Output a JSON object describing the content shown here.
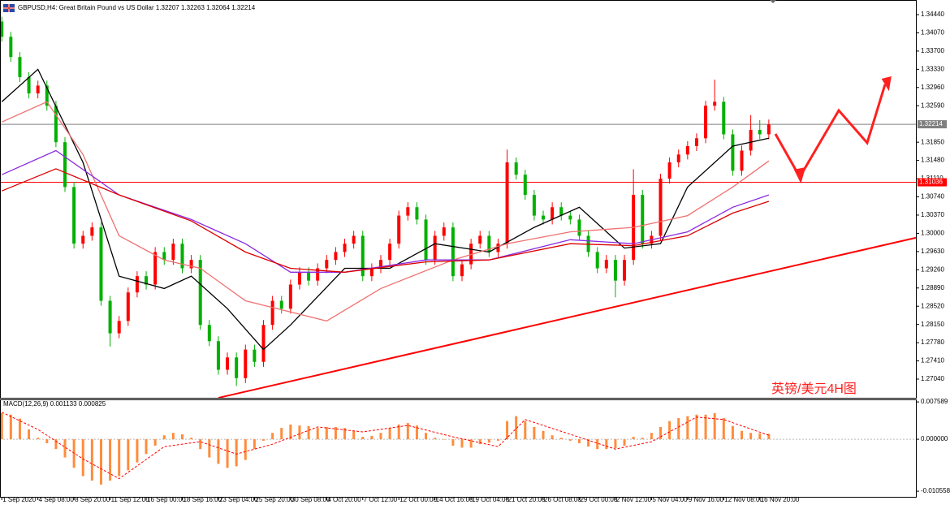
{
  "chart_data": [
    {
      "type": "candlestick",
      "title": "GBPUSD,H4:  Great Britain Pound vs US Dollar  1.32207 1.32263 1.32064 1.32214",
      "annotation": "英镑/美元4H图",
      "categories": [
        "1 Sep 2020",
        null,
        null,
        null,
        "4 Sep 08:00",
        null,
        null,
        null,
        "8 Sep 20:00",
        null,
        null,
        null,
        "11 Sep 12:00",
        null,
        null,
        null,
        "16 Sep 00:00",
        null,
        null,
        null,
        "18 Sep 16:00",
        null,
        null,
        null,
        "23 Sep 04:00",
        null,
        null,
        null,
        "25 Sep 20:00",
        null,
        null,
        null,
        "30 Sep 08:00",
        null,
        null,
        null,
        "4 Oct 20:00",
        null,
        null,
        null,
        "7 Oct 12:00",
        null,
        null,
        null,
        "12 Oct 00:00",
        null,
        null,
        null,
        "14 Oct 16:00",
        null,
        null,
        null,
        "19 Oct 04:00",
        null,
        null,
        null,
        "21 Oct 20:00",
        null,
        null,
        null,
        "26 Oct 08:00",
        null,
        null,
        null,
        "29 Oct 00:00",
        null,
        null,
        null,
        "2 Nov 12:00",
        null,
        null,
        null,
        "5 Nov 04:00",
        null,
        null,
        null,
        "9 Nov 16:00",
        null,
        null,
        null,
        "12 Nov 08:00",
        null,
        null,
        null,
        "16 Nov 20:00",
        null
      ],
      "open": [
        1.343,
        1.3399,
        1.3358,
        1.3317,
        1.3284,
        1.33,
        1.3259,
        1.3185,
        1.3094,
        1.2979,
        1.2995,
        1.3012,
        1.2863,
        1.2797,
        1.2822,
        1.288,
        1.2913,
        1.2896,
        1.2962,
        1.2946,
        1.2979,
        1.2929,
        1.2946,
        1.2814,
        1.2781,
        1.2723,
        1.2748,
        1.2706,
        1.2764,
        1.2739,
        1.2814,
        1.2863,
        1.2847,
        1.2896,
        1.2921,
        1.2904,
        1.2929,
        1.2946,
        1.2962,
        1.2979,
        1.2995,
        1.2913,
        1.2929,
        1.2946,
        1.2979,
        1.3036,
        1.3053,
        1.3028,
        1.2946,
        1.2995,
        1.3012,
        1.2913,
        1.2937,
        1.2979,
        1.2995,
        1.2962,
        1.2979,
        1.3144,
        1.3119,
        1.3078,
        1.3036,
        1.3028,
        1.3053,
        1.3036,
        1.3028,
        1.2995,
        1.2962,
        1.2929,
        1.2946,
        1.2904,
        1.2946,
        1.3078,
        1.2979,
        1.2995,
        1.3111,
        1.3144,
        1.316,
        1.3177,
        1.3193,
        1.3259,
        1.3267,
        1.3201,
        1.3127,
        1.3168,
        1.321,
        1.3201
      ],
      "high": [
        1.344,
        1.3409,
        1.3368,
        1.3327,
        1.331,
        1.331,
        1.3269,
        1.3195,
        1.3104,
        1.3005,
        1.3022,
        1.3022,
        1.2873,
        1.2832,
        1.289,
        1.2923,
        1.2923,
        1.2972,
        1.2972,
        1.2989,
        1.2989,
        1.2956,
        1.2956,
        1.2824,
        1.2791,
        1.2758,
        1.2758,
        1.2774,
        1.2774,
        1.2824,
        1.2873,
        1.2873,
        1.2906,
        1.2931,
        1.2931,
        1.2939,
        1.2956,
        1.2972,
        1.2989,
        1.3005,
        1.3005,
        1.2939,
        1.2956,
        1.2989,
        1.3046,
        1.3063,
        1.3063,
        1.3038,
        1.3005,
        1.3022,
        1.3022,
        1.2947,
        1.2989,
        1.3005,
        1.3005,
        1.2989,
        1.317,
        1.3154,
        1.3129,
        1.3088,
        1.3046,
        1.3063,
        1.3063,
        1.3046,
        1.3038,
        1.3005,
        1.2972,
        1.2956,
        1.2956,
        1.2956,
        1.313,
        1.3088,
        1.3005,
        1.3121,
        1.3154,
        1.317,
        1.3187,
        1.3203,
        1.3269,
        1.3312,
        1.3277,
        1.3211,
        1.3178,
        1.324,
        1.323,
        1.3231
      ],
      "low": [
        1.3389,
        1.3348,
        1.3307,
        1.3274,
        1.3274,
        1.3249,
        1.3175,
        1.3084,
        1.2969,
        1.2969,
        1.2985,
        1.2853,
        1.277,
        1.2787,
        1.2812,
        1.287,
        1.2886,
        1.2886,
        1.2936,
        1.2936,
        1.2919,
        1.2919,
        1.2804,
        1.2771,
        1.2713,
        1.2713,
        1.269,
        1.2696,
        1.2729,
        1.2729,
        1.2804,
        1.2837,
        1.2837,
        1.2886,
        1.2894,
        1.2894,
        1.2919,
        1.2936,
        1.2952,
        1.2969,
        1.2903,
        1.2903,
        1.2919,
        1.2936,
        1.2969,
        1.3026,
        1.3018,
        1.2936,
        1.2936,
        1.2985,
        1.2903,
        1.2903,
        1.2927,
        1.2969,
        1.2952,
        1.2952,
        1.2969,
        1.3109,
        1.3068,
        1.3026,
        1.3018,
        1.3018,
        1.3026,
        1.3018,
        1.2985,
        1.2952,
        1.2919,
        1.2919,
        1.287,
        1.2894,
        1.2936,
        1.2969,
        1.2969,
        1.2985,
        1.3101,
        1.3134,
        1.315,
        1.3167,
        1.3183,
        1.3249,
        1.3191,
        1.3117,
        1.3117,
        1.3158,
        1.3191,
        1.3191
      ],
      "close": [
        1.3399,
        1.3358,
        1.3317,
        1.3284,
        1.33,
        1.3259,
        1.3185,
        1.3094,
        1.2979,
        1.2995,
        1.3012,
        1.2863,
        1.2797,
        1.2822,
        1.288,
        1.2913,
        1.2896,
        1.2962,
        1.2946,
        1.2979,
        1.2929,
        1.2946,
        1.2814,
        1.2781,
        1.2723,
        1.2748,
        1.2706,
        1.2764,
        1.2739,
        1.2814,
        1.2863,
        1.2847,
        1.2896,
        1.2921,
        1.2904,
        1.2929,
        1.2946,
        1.2962,
        1.2979,
        1.2995,
        1.2913,
        1.2929,
        1.2946,
        1.2979,
        1.3036,
        1.3053,
        1.3028,
        1.2946,
        1.2995,
        1.3012,
        1.2913,
        1.2937,
        1.2979,
        1.2995,
        1.2962,
        1.2979,
        1.3144,
        1.3119,
        1.3078,
        1.3036,
        1.3028,
        1.3053,
        1.3036,
        1.3028,
        1.2995,
        1.2962,
        1.2929,
        1.2946,
        1.2904,
        1.2946,
        1.3078,
        1.2979,
        1.2995,
        1.3111,
        1.3144,
        1.316,
        1.3177,
        1.3193,
        1.3259,
        1.3267,
        1.3201,
        1.3127,
        1.3168,
        1.321,
        1.3201,
        1.3221
      ],
      "up_color": "#ff0000",
      "down_color": "#00b000",
      "xlim": [
        -0.2,
        101.3
      ],
      "ylim": [
        1.26661,
        1.34737
      ],
      "yticks": [
        {
          "value": 1.3444,
          "label": "1.34440"
        },
        {
          "value": 1.3407,
          "label": "1.34070"
        },
        {
          "value": 1.337,
          "label": "1.33700"
        },
        {
          "value": 1.3333,
          "label": "1.33330"
        },
        {
          "value": 1.3296,
          "label": "1.32960"
        },
        {
          "value": 1.3259,
          "label": "1.32590"
        },
        {
          "value": 1.3185,
          "label": "1.31850"
        },
        {
          "value": 1.3148,
          "label": "1.31480"
        },
        {
          "value": 1.3111,
          "label": "1.31110"
        },
        {
          "value": 1.3074,
          "label": "1.30740"
        },
        {
          "value": 1.3037,
          "label": "1.30370"
        },
        {
          "value": 1.3,
          "label": "1.30000"
        },
        {
          "value": 1.2963,
          "label": "1.29630"
        },
        {
          "value": 1.2926,
          "label": "1.29260"
        },
        {
          "value": 1.2889,
          "label": "1.28890"
        },
        {
          "value": 1.2852,
          "label": "1.28520"
        },
        {
          "value": 1.2815,
          "label": "1.28150"
        },
        {
          "value": 1.2778,
          "label": "1.27780"
        },
        {
          "value": 1.2741,
          "label": "1.27410"
        },
        {
          "value": 1.2704,
          "label": "1.27040"
        }
      ],
      "lines": [
        {
          "color": "#000000",
          "x": [
            0,
            4,
            9,
            13,
            18,
            21,
            25,
            29,
            32,
            38,
            43,
            48,
            54,
            59,
            64,
            69,
            73,
            76,
            81,
            85
          ],
          "values": [
            1.3267,
            1.3333,
            1.3144,
            1.2913,
            1.2888,
            1.2913,
            1.2847,
            1.2764,
            1.2814,
            1.2929,
            1.2929,
            1.2979,
            1.2962,
            1.3012,
            1.3053,
            1.297,
            1.2979,
            1.3094,
            1.3177,
            1.3193
          ]
        },
        {
          "color": "#f07070",
          "x": [
            0,
            5,
            9,
            13,
            18,
            22,
            27,
            36,
            42,
            50,
            56,
            63,
            70,
            76,
            81,
            85
          ],
          "values": [
            1.3226,
            1.3267,
            1.316,
            1.2995,
            1.2946,
            1.2929,
            1.2863,
            1.2822,
            1.2888,
            1.2946,
            1.2979,
            1.3003,
            1.3012,
            1.3036,
            1.3094,
            1.3147
          ]
        },
        {
          "color": "#8a2be2",
          "x": [
            0,
            6,
            13,
            21,
            27,
            32,
            38,
            47,
            54,
            63,
            70,
            76,
            81,
            85
          ],
          "values": [
            1.3119,
            1.3168,
            1.3078,
            1.3028,
            1.2979,
            1.2921,
            1.2921,
            1.2946,
            1.2946,
            1.2987,
            1.2979,
            1.3003,
            1.3053,
            1.3078
          ]
        },
        {
          "color": "#dd0000",
          "x": [
            0,
            6,
            13,
            21,
            27,
            32,
            38,
            47,
            54,
            63,
            70,
            76,
            81,
            85
          ],
          "values": [
            1.3086,
            1.3131,
            1.3078,
            1.3025,
            1.2962,
            1.2929,
            1.2921,
            1.2942,
            1.2946,
            1.2979,
            1.2975,
            1.2995,
            1.3041,
            1.3065
          ]
        }
      ],
      "hlines": [
        {
          "value": 1.32214,
          "label": "1.32214",
          "color": "#808080"
        },
        {
          "value": 1.31036,
          "label": "1.31036",
          "color": "#ff0000"
        }
      ],
      "trendline": {
        "x": [
          24,
          101.3
        ],
        "values": [
          1.2666,
          1.2991
        ],
        "color": "#ff0000"
      }
    },
    {
      "type": "macd",
      "title": "MACD(12,26,9) 0.001133 0.000825",
      "values": [
        0.0053,
        0.005,
        0.0042,
        0.002,
        0.0003,
        -0.0008,
        -0.002,
        -0.0037,
        -0.0058,
        -0.0075,
        -0.0084,
        -0.0092,
        -0.0084,
        -0.0075,
        -0.0063,
        -0.0047,
        -0.003,
        -0.0013,
        0.0008,
        0.0013,
        0.001,
        0.0003,
        -0.002,
        -0.0037,
        -0.005,
        -0.0058,
        -0.0055,
        -0.0042,
        -0.002,
        -0.0003,
        0.0013,
        0.0023,
        0.003,
        0.0028,
        0.0027,
        0.0023,
        0.0025,
        0.0025,
        0.0023,
        0.0017,
        0.0005,
        0.0007,
        0.0013,
        0.0023,
        0.003,
        0.0033,
        0.0028,
        0.0013,
        0.0003,
        0,
        -0.0013,
        -0.0017,
        -0.0017,
        -0.001,
        -0.0007,
        -0.0003,
        0.0037,
        0.0047,
        0.0037,
        0.0025,
        0.0017,
        0.0008,
        0.0003,
        -0.0003,
        -0.0008,
        -0.0015,
        -0.002,
        -0.002,
        -0.0018,
        -0.0013,
        0.0005,
        0.0003,
        0.0013,
        0.0025,
        0.0037,
        0.0043,
        0.0047,
        0.005,
        0.005,
        0.0053,
        0.0043,
        0.0027,
        0.0017,
        0.0013,
        0.0012,
        0.0011
      ],
      "color": "#ff8c3c",
      "signal": {
        "color": "#ff0000",
        "x": [
          0,
          4,
          9,
          13,
          18,
          22,
          26,
          30,
          35,
          40,
          45,
          50,
          55,
          58,
          63,
          68,
          72,
          77,
          80,
          85
        ],
        "values": [
          0.0055,
          0.002,
          -0.004,
          -0.008,
          -0.0015,
          -0.0005,
          -0.003,
          -0.001,
          0.0025,
          0.0015,
          0.0028,
          0.0005,
          -0.0015,
          0.004,
          0.001,
          -0.002,
          -0.0005,
          0.0045,
          0.004,
          0.0008
        ]
      },
      "ylim": [
        -0.0117,
        0.0081
      ],
      "yticks": [
        0.007589,
        {
          "value": 0,
          "label": "0.000000"
        },
        -0.010558
      ]
    }
  ]
}
